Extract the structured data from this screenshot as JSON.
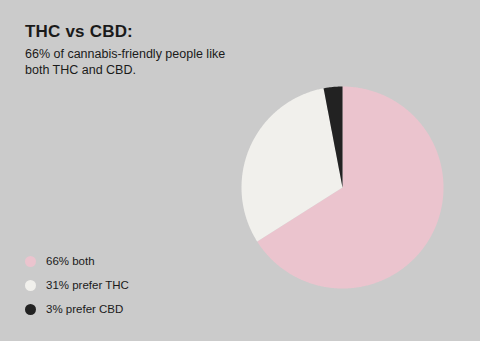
{
  "chart_data": {
    "type": "pie",
    "title": "THC vs CBD:",
    "subtitle": "66% of cannabis-friendly people like both THC and CBD.",
    "categories": [
      "66% both",
      "31% prefer THC",
      "3% prefer CBD"
    ],
    "values": [
      66,
      31,
      3
    ],
    "colors": [
      "#ebc4ce",
      "#f1f0ec",
      "#222222"
    ],
    "legend": "bottom-left"
  }
}
